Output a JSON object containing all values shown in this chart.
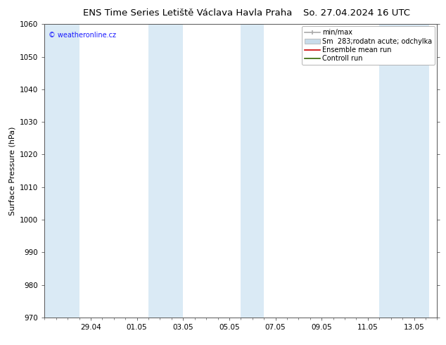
{
  "title_left": "ENS Time Series Letiště Václava Havla Praha",
  "title_right": "So. 27.04.2024 16 UTC",
  "ylabel": "Surface Pressure (hPa)",
  "ylim": [
    970,
    1060
  ],
  "yticks": [
    970,
    980,
    990,
    1000,
    1010,
    1020,
    1030,
    1040,
    1050,
    1060
  ],
  "x_tick_labels": [
    "29.04",
    "01.05",
    "03.05",
    "05.05",
    "07.05",
    "09.05",
    "11.05",
    "13.05"
  ],
  "x_tick_positions": [
    2,
    4,
    6,
    8,
    10,
    12,
    14,
    16
  ],
  "xlim": [
    0,
    16.67
  ],
  "shaded_bands": [
    {
      "start": 0.0,
      "end": 1.5,
      "color": "#daeaf5"
    },
    {
      "start": 4.5,
      "end": 6.0,
      "color": "#daeaf5"
    },
    {
      "start": 8.5,
      "end": 9.5,
      "color": "#daeaf5"
    },
    {
      "start": 14.5,
      "end": 15.5,
      "color": "#daeaf5"
    },
    {
      "start": 15.5,
      "end": 16.67,
      "color": "#daeaf5"
    }
  ],
  "legend_label_minmax": "min/max",
  "legend_label_sm": "Sm  283;rodatn acute; odchylka",
  "legend_label_ensemble": "Ensemble mean run",
  "legend_label_control": "Controll run",
  "legend_color_minmax": "#aaaaaa",
  "legend_color_sm": "#c8dcea",
  "legend_color_ensemble": "#cc0000",
  "legend_color_control": "#336600",
  "watermark": "© weatheronline.cz",
  "watermark_color": "#1a1aff",
  "background_color": "#ffffff",
  "plot_bg_color": "#ffffff",
  "spine_color": "#555555",
  "tick_color": "#333333",
  "title_fontsize": 9.5,
  "label_fontsize": 8,
  "tick_fontsize": 7.5,
  "legend_fontsize": 7
}
